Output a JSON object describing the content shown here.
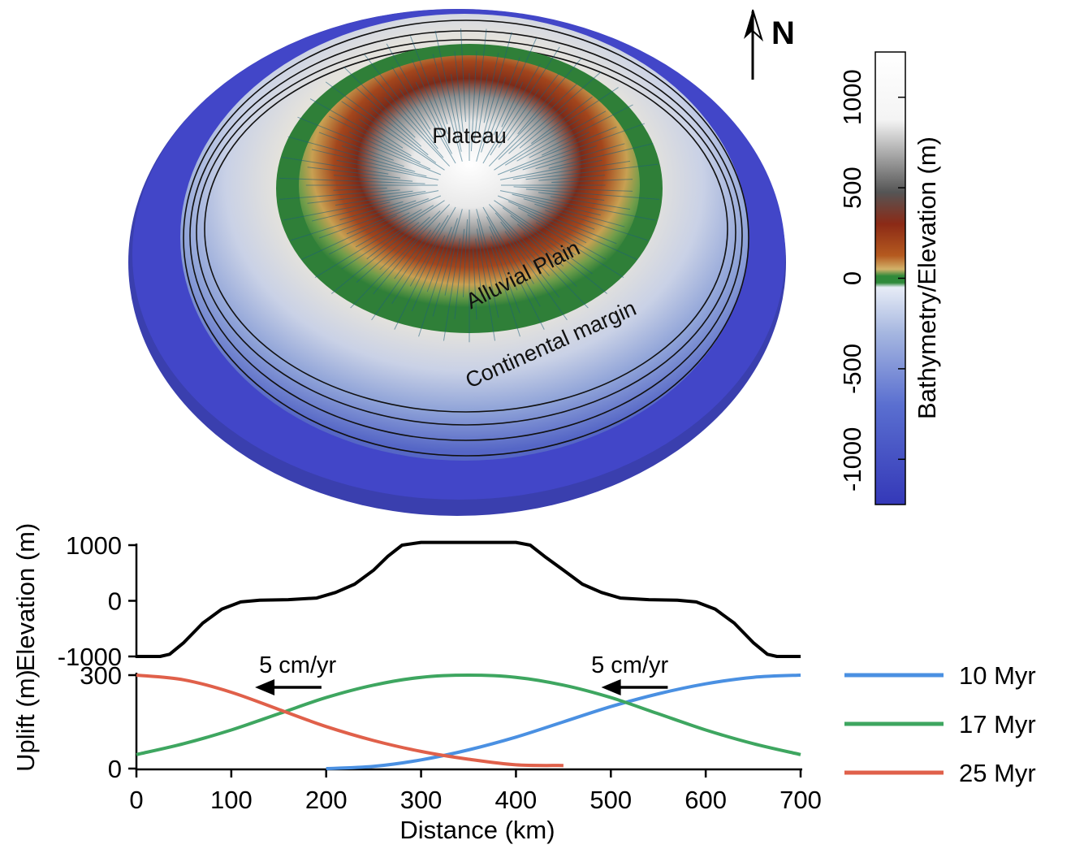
{
  "map": {
    "labels": {
      "plateau": "Plateau",
      "alluvial_plain": "Alluvial Plain",
      "continental_margin": "Continental margin"
    },
    "north_label": "N",
    "colorbar": {
      "title": "Bathymetry/Elevation (m)",
      "ticks": [
        "1000",
        "500",
        "0",
        "-500",
        "-1000"
      ],
      "tick_values": [
        1000,
        500,
        0,
        -500,
        -1000
      ],
      "range": [
        -1250,
        1250
      ],
      "colors": {
        "deep": "#3a3fbf",
        "shelf": "#c9d6ef",
        "coast": "#2f8a3a",
        "lowland": "#d2b26a",
        "mid": "#8b2a16",
        "high": "#777777",
        "peak": "#ffffff"
      }
    }
  },
  "chart_data": [
    {
      "type": "line",
      "ylabel": "Elevation (m)",
      "xlim": [
        0,
        700
      ],
      "ylim": [
        -1000,
        1000
      ],
      "yticks": [
        "1000",
        "0",
        "-1000"
      ],
      "ytick_values": [
        1000,
        0,
        -1000
      ],
      "series": [
        {
          "color": "#000000",
          "x": [
            0,
            25,
            35,
            50,
            70,
            90,
            110,
            130,
            160,
            190,
            210,
            230,
            250,
            265,
            280,
            300,
            350,
            400,
            415,
            430,
            450,
            470,
            490,
            510,
            540,
            570,
            590,
            610,
            630,
            650,
            665,
            675,
            700
          ],
          "y": [
            -1000,
            -1000,
            -960,
            -750,
            -400,
            -150,
            -20,
            10,
            20,
            50,
            150,
            300,
            550,
            800,
            1000,
            1050,
            1050,
            1050,
            1000,
            800,
            550,
            300,
            150,
            50,
            20,
            10,
            -20,
            -150,
            -400,
            -750,
            -960,
            -1000,
            -1000
          ]
        }
      ]
    },
    {
      "type": "line",
      "xlabel": "Distance (km)",
      "ylabel": "Uplift (m)",
      "xlim": [
        0,
        700
      ],
      "ylim": [
        0,
        300
      ],
      "xticks": [
        "0",
        "100",
        "200",
        "300",
        "400",
        "500",
        "600",
        "700"
      ],
      "xtick_values": [
        0,
        100,
        200,
        300,
        400,
        500,
        600,
        700
      ],
      "yticks": [
        "300",
        "0"
      ],
      "ytick_values": [
        300,
        0
      ],
      "series": [
        {
          "name": "10 Myr",
          "color": "#4a90e2",
          "x": [
            200,
            250,
            300,
            350,
            400,
            450,
            500,
            550,
            600,
            650,
            700
          ],
          "y": [
            0,
            7,
            28,
            60,
            101,
            150,
            199,
            240,
            272,
            293,
            300
          ]
        },
        {
          "name": "17 Myr",
          "color": "#3ea660",
          "x": [
            0,
            50,
            100,
            150,
            200,
            250,
            300,
            350,
            400,
            450,
            500,
            550,
            600,
            650,
            700
          ],
          "y": [
            45,
            80,
            124,
            176,
            228,
            268,
            293,
            300,
            293,
            268,
            228,
            176,
            124,
            80,
            45
          ]
        },
        {
          "name": "25 Myr",
          "color": "#e0604a",
          "x": [
            0,
            50,
            100,
            150,
            200,
            250,
            300,
            350,
            400,
            450
          ],
          "y": [
            300,
            285,
            245,
            190,
            135,
            90,
            55,
            30,
            12,
            10
          ]
        }
      ],
      "annotations": [
        {
          "text": "5 cm/yr",
          "x": 170,
          "y": 300,
          "arrow_from": 195,
          "arrow_to": 125
        },
        {
          "text": "5 cm/yr",
          "x": 520,
          "y": 300,
          "arrow_from": 560,
          "arrow_to": 490
        }
      ],
      "legend": "right"
    }
  ]
}
